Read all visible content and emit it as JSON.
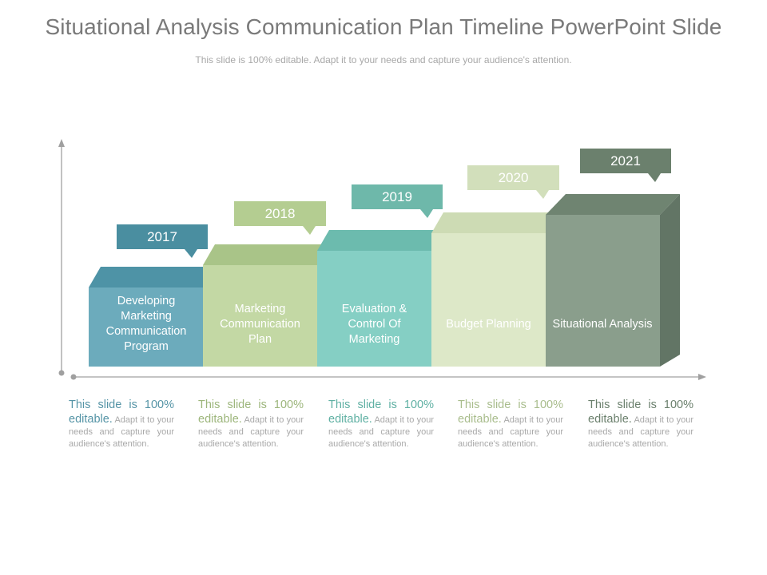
{
  "title": "Situational Analysis Communication Plan Timeline PowerPoint Slide",
  "subtitle": "This slide is 100% editable. Adapt it to your needs and capture your audience's attention.",
  "steps": [
    {
      "year": "2017",
      "label": "Developing Marketing Communication Program",
      "desc_lead": "This slide is 100% editable.",
      "desc_rest": " Adapt it to your needs and capture your audience's attention.",
      "colors": {
        "front": "#6cabbc",
        "top": "#4e93a6",
        "tag": "#4a8ea0",
        "lead": "#5594a6"
      }
    },
    {
      "year": "2018",
      "label": "Marketing Communication Plan",
      "desc_lead": "This slide is 100% editable.",
      "desc_rest": " Adapt it to your needs and capture your audience's attention.",
      "colors": {
        "front": "#c3d8a4",
        "top": "#a9c488",
        "tag": "#b4cd91",
        "lead": "#9db67c"
      }
    },
    {
      "year": "2019",
      "label": "Evaluation & Control Of Marketing",
      "desc_lead": "This slide is 100% editable.",
      "desc_rest": " Adapt it to your needs and capture your audience's attention.",
      "colors": {
        "front": "#85cfc4",
        "top": "#6cbbae",
        "tag": "#6eb8aa",
        "lead": "#5fb0a3"
      }
    },
    {
      "year": "2020",
      "label": "Budget Planning",
      "desc_lead": "This slide is 100% editable.",
      "desc_rest": " Adapt it to your needs and capture your audience's attention.",
      "colors": {
        "front": "#dde8c8",
        "top": "#cddbb4",
        "tag": "#d2dfbb",
        "lead": "#a9bd8d"
      }
    },
    {
      "year": "2021",
      "label": "Situational Analysis",
      "desc_lead": "This slide is 100% editable.",
      "desc_rest": " Adapt it to your needs and capture your audience's attention.",
      "colors": {
        "front": "#8a9e8c",
        "top": "#6f8471",
        "side": "#627565",
        "tag": "#6b806d",
        "lead": "#6b806d"
      }
    }
  ],
  "axis_color": "#a0a0a0"
}
